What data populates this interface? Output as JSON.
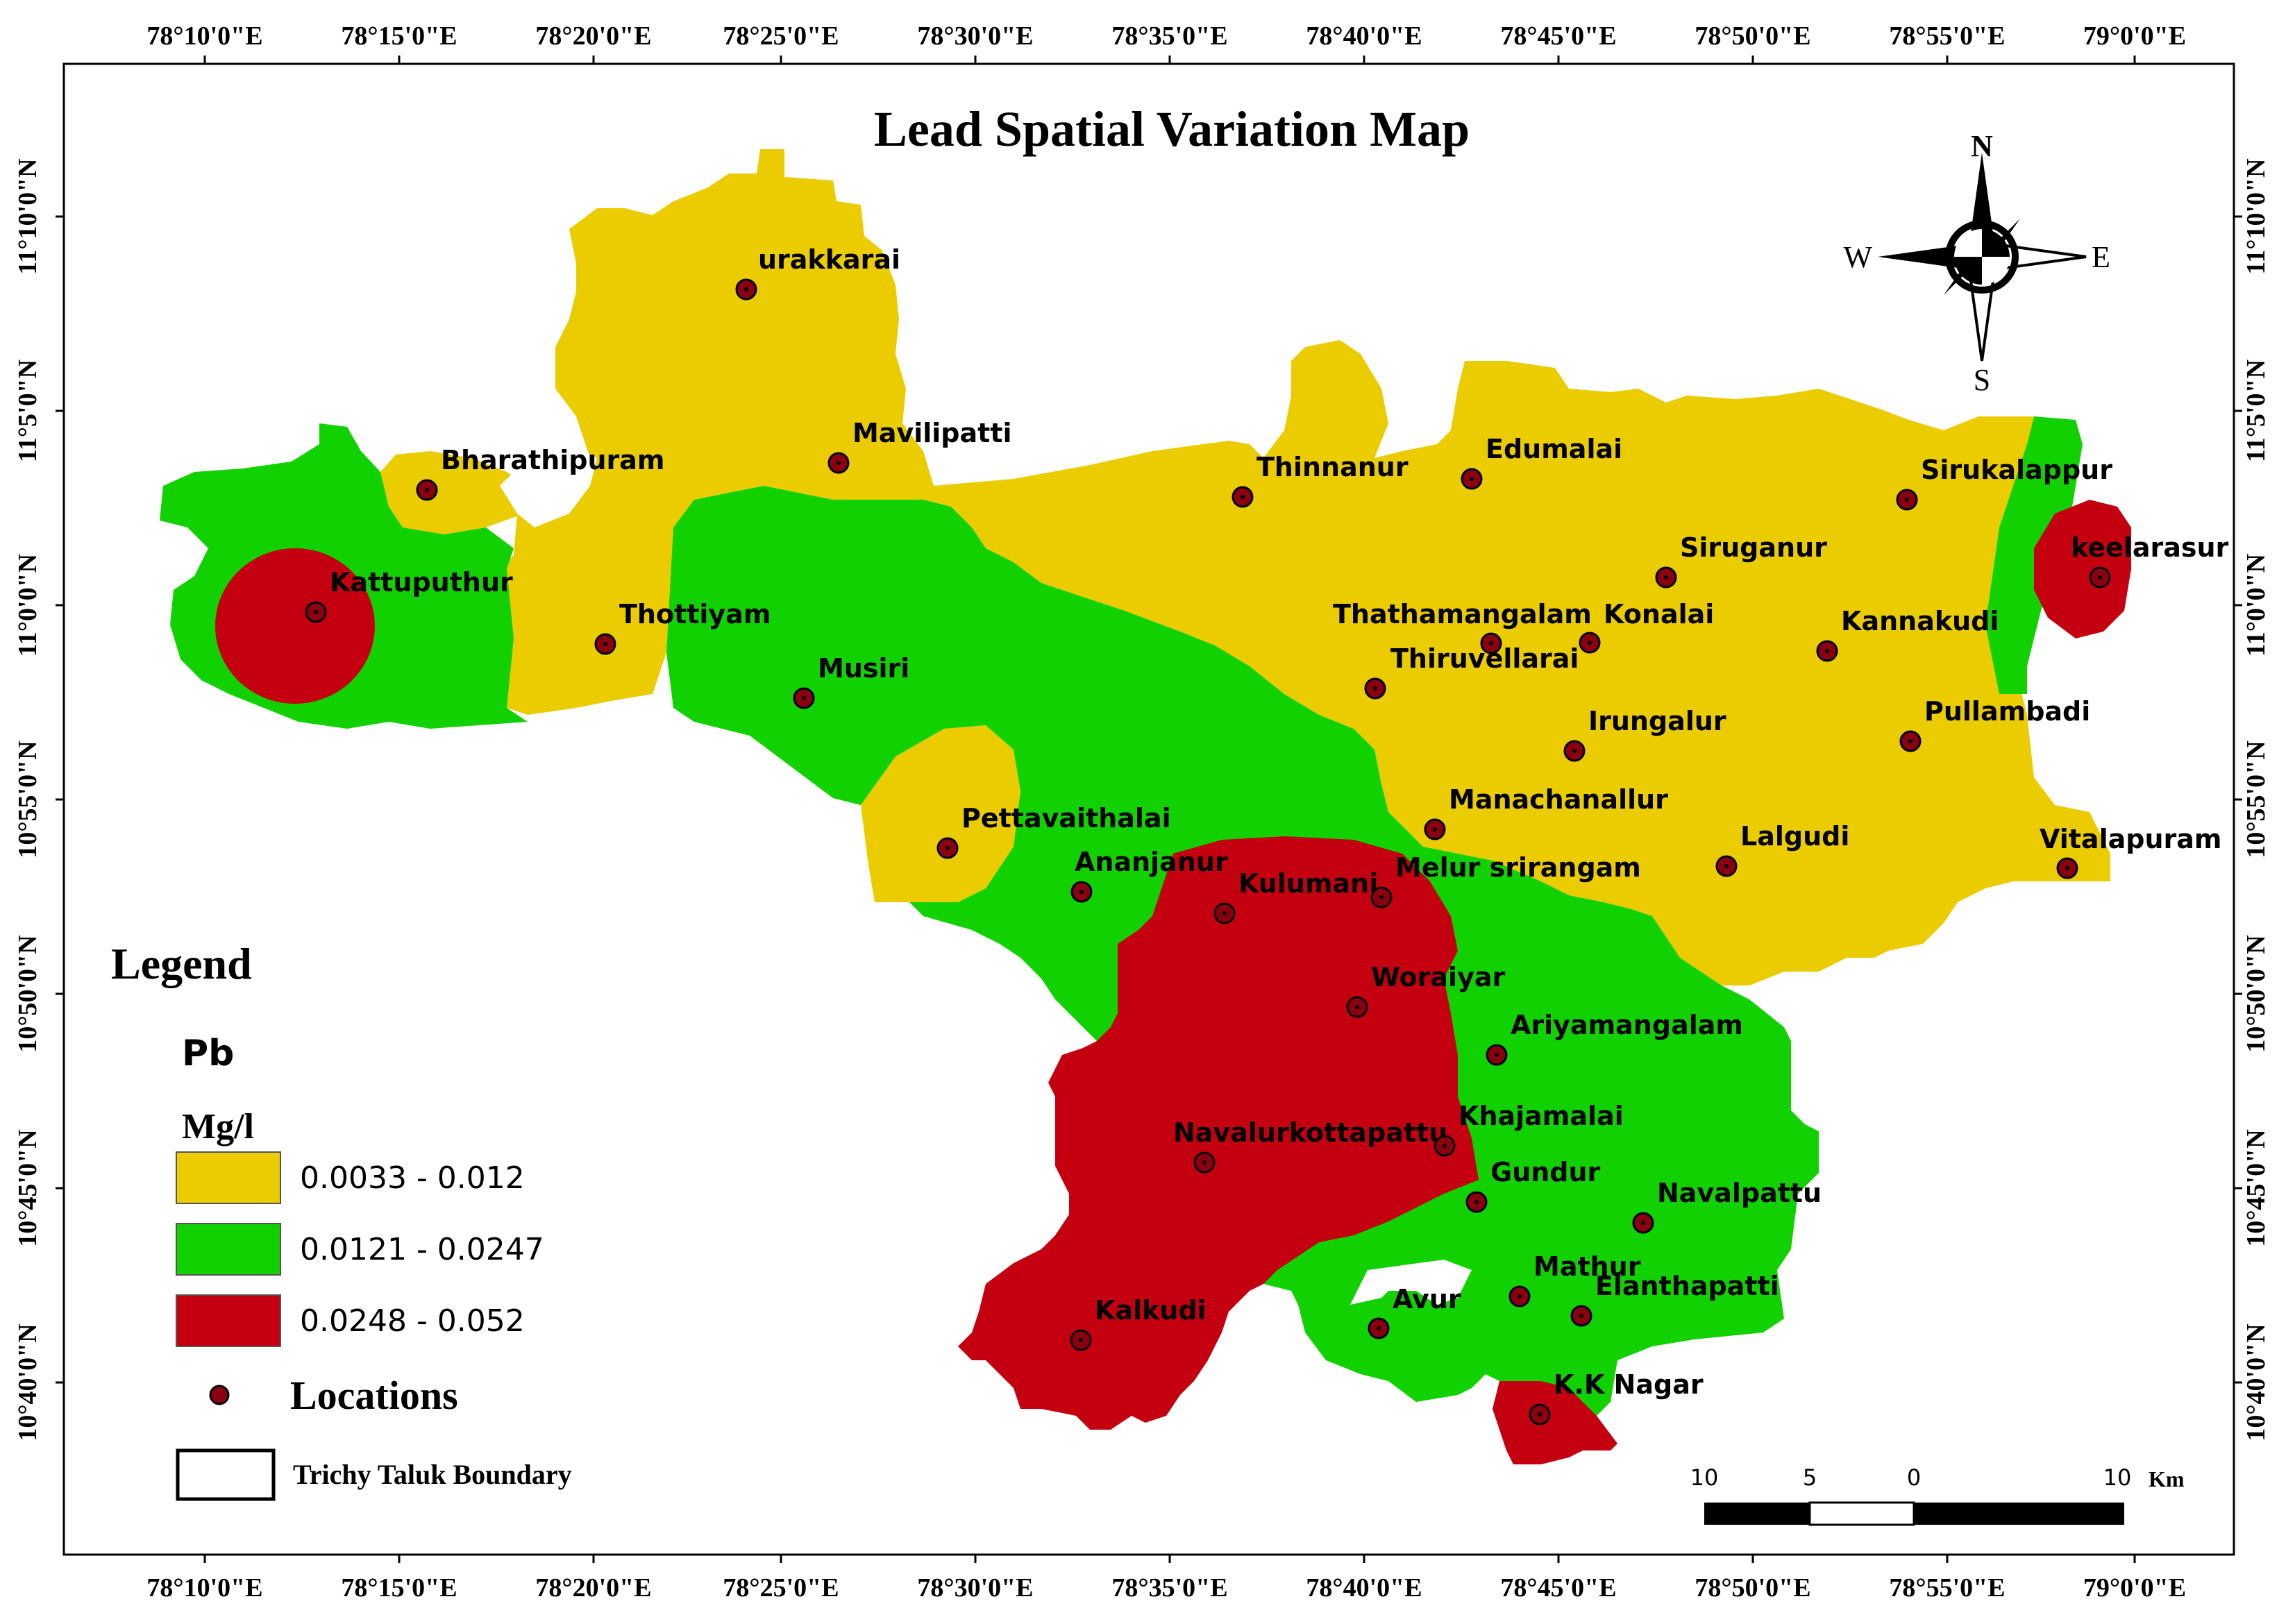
{
  "map": {
    "title": "Lead Spatial Variation Map",
    "colors": {
      "class1": "#ebcc00",
      "class2": "#11d200",
      "class3": "#c40010",
      "frame": "#000000"
    },
    "lon_ticks": [
      "78°10'0\"E",
      "78°15'0\"E",
      "78°20'0\"E",
      "78°25'0\"E",
      "78°30'0\"E",
      "78°35'0\"E",
      "78°40'0\"E",
      "78°45'0\"E",
      "78°50'0\"E",
      "78°55'0\"E",
      "79°0'0\"E"
    ],
    "lat_ticks": [
      "11°10'0\"N",
      "11°5'0\"N",
      "11°0'0\"N",
      "10°55'0\"N",
      "10°50'0\"N",
      "10°45'0\"N",
      "10°40'0\"N"
    ]
  },
  "locations": [
    {
      "name": "urakkarai",
      "class": 1
    },
    {
      "name": "Mavilipatti",
      "class": 1
    },
    {
      "name": "Bharathipuram",
      "class": 1
    },
    {
      "name": "Kattuputhur",
      "class": 3
    },
    {
      "name": "Thottiyam",
      "class": 1
    },
    {
      "name": "Musiri",
      "class": 2
    },
    {
      "name": "Thinnanur",
      "class": 1
    },
    {
      "name": "Edumalai",
      "class": 1
    },
    {
      "name": "Sirukalappur",
      "class": 1
    },
    {
      "name": "keelarasur",
      "class": 3
    },
    {
      "name": "Siruganur",
      "class": 1
    },
    {
      "name": "Thathamangalam",
      "class": 1
    },
    {
      "name": "Konalai",
      "class": 1
    },
    {
      "name": "Kannakudi",
      "class": 1
    },
    {
      "name": "Thiruvellarai",
      "class": 1
    },
    {
      "name": "Irungalur",
      "class": 1
    },
    {
      "name": "Pullambadi",
      "class": 1
    },
    {
      "name": "Manachanallur",
      "class": 1
    },
    {
      "name": "Pettavaithalai",
      "class": 1
    },
    {
      "name": "Ananjanur",
      "class": 2
    },
    {
      "name": "Kulumani",
      "class": 3
    },
    {
      "name": "Melur srirangam",
      "class": 2
    },
    {
      "name": "Lalgudi",
      "class": 1
    },
    {
      "name": "Vitalapuram",
      "class": 1
    },
    {
      "name": "Woraiyar",
      "class": 3
    },
    {
      "name": "Ariyamangalam",
      "class": 2
    },
    {
      "name": "Navalurkottapattu",
      "class": 3
    },
    {
      "name": "Khajamalai",
      "class": 2
    },
    {
      "name": "Gundur",
      "class": 2
    },
    {
      "name": "Navalpattu",
      "class": 2
    },
    {
      "name": "Mathur",
      "class": 1
    },
    {
      "name": "Elanthapatti",
      "class": 2
    },
    {
      "name": "Avur",
      "class": 1
    },
    {
      "name": "Kalkudi",
      "class": 3
    },
    {
      "name": "K.K Nagar",
      "class": 3
    }
  ],
  "compass": {
    "n": "N",
    "s": "S",
    "e": "E",
    "w": "W"
  },
  "scale_bar": {
    "labels": [
      "10",
      "5",
      "0",
      "10"
    ],
    "unit": "Km"
  },
  "legend": {
    "title": "Legend",
    "parameter": "Pb",
    "unit": "Mg/l",
    "classes": [
      {
        "range": "0.0033 - 0.012",
        "color": "#ebcc00"
      },
      {
        "range": "0.0121 - 0.0247",
        "color": "#11d200"
      },
      {
        "range": "0.0248 - 0.052",
        "color": "#c40010"
      }
    ],
    "locations_label": "Locations",
    "boundary_label": "Trichy Taluk Boundary"
  }
}
